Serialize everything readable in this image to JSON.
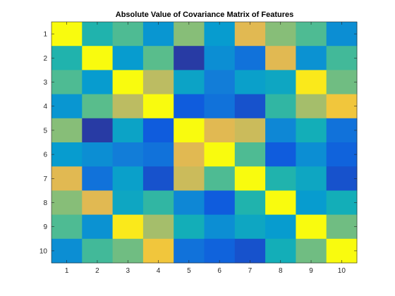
{
  "chart_data": {
    "type": "heatmap",
    "title": "Absolute Value of Covariance Matrix of Features",
    "xlabel": "",
    "ylabel": "",
    "x_categories": [
      "1",
      "2",
      "3",
      "4",
      "5",
      "6",
      "7",
      "8",
      "9",
      "10"
    ],
    "y_categories": [
      "1",
      "2",
      "3",
      "4",
      "5",
      "6",
      "7",
      "8",
      "9",
      "10"
    ],
    "colormap": "parula",
    "clim": [
      0,
      1
    ],
    "values": [
      [
        1.0,
        0.62,
        0.7,
        0.42,
        0.78,
        0.45,
        0.9,
        0.78,
        0.7,
        0.38
      ],
      [
        0.62,
        1.0,
        0.45,
        0.72,
        0.05,
        0.38,
        0.25,
        0.9,
        0.4,
        0.68
      ],
      [
        0.7,
        0.45,
        1.0,
        0.85,
        0.5,
        0.3,
        0.48,
        0.52,
        0.98,
        0.75
      ],
      [
        0.42,
        0.72,
        0.85,
        1.0,
        0.15,
        0.25,
        0.12,
        0.65,
        0.82,
        0.93
      ],
      [
        0.78,
        0.05,
        0.5,
        0.15,
        1.0,
        0.9,
        0.87,
        0.35,
        0.58,
        0.25
      ],
      [
        0.45,
        0.38,
        0.3,
        0.25,
        0.9,
        1.0,
        0.7,
        0.15,
        0.38,
        0.18
      ],
      [
        0.9,
        0.25,
        0.48,
        0.12,
        0.87,
        0.7,
        1.0,
        0.62,
        0.52,
        0.12
      ],
      [
        0.78,
        0.9,
        0.52,
        0.65,
        0.35,
        0.15,
        0.62,
        1.0,
        0.45,
        0.58
      ],
      [
        0.7,
        0.4,
        0.98,
        0.82,
        0.58,
        0.38,
        0.52,
        0.45,
        1.0,
        0.75
      ],
      [
        0.38,
        0.68,
        0.75,
        0.93,
        0.25,
        0.18,
        0.12,
        0.58,
        0.75,
        1.0
      ]
    ]
  }
}
